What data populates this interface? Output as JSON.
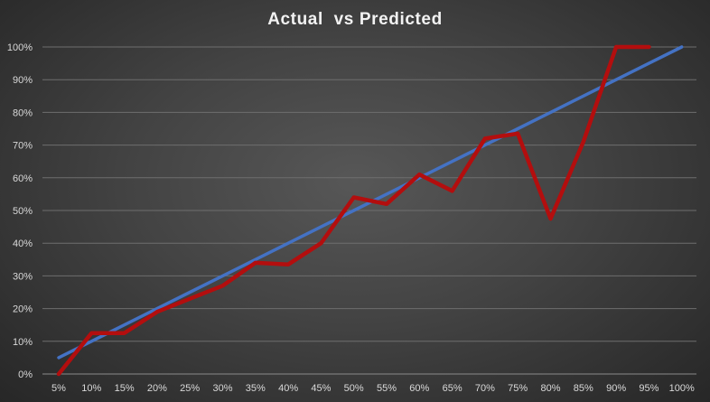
{
  "chart_data": {
    "type": "line",
    "title": "Actual  vs Predicted",
    "xlabel": "",
    "ylabel": "",
    "ylim": [
      0,
      100
    ],
    "y_unit": "%",
    "grid": "horizontal",
    "legend": "none",
    "categories": [
      "5%",
      "10%",
      "15%",
      "20%",
      "25%",
      "30%",
      "35%",
      "40%",
      "45%",
      "50%",
      "55%",
      "60%",
      "65%",
      "70%",
      "75%",
      "80%",
      "85%",
      "90%",
      "95%",
      "100%"
    ],
    "y_ticks": [
      "0%",
      "10%",
      "20%",
      "30%",
      "40%",
      "50%",
      "60%",
      "70%",
      "80%",
      "90%",
      "100%"
    ],
    "series": [
      {
        "color": "#4472c4",
        "values": [
          5,
          10,
          15,
          20,
          25,
          30,
          35,
          40,
          45,
          50,
          55,
          60,
          65,
          70,
          75,
          80,
          85,
          90,
          95,
          100
        ]
      },
      {
        "color": "#b30e0e",
        "values": [
          0,
          12.5,
          12.5,
          19,
          23,
          27,
          34,
          33.5,
          40,
          54,
          52,
          61,
          56,
          72,
          73.5,
          47.5,
          71,
          100,
          100,
          null
        ]
      }
    ]
  }
}
